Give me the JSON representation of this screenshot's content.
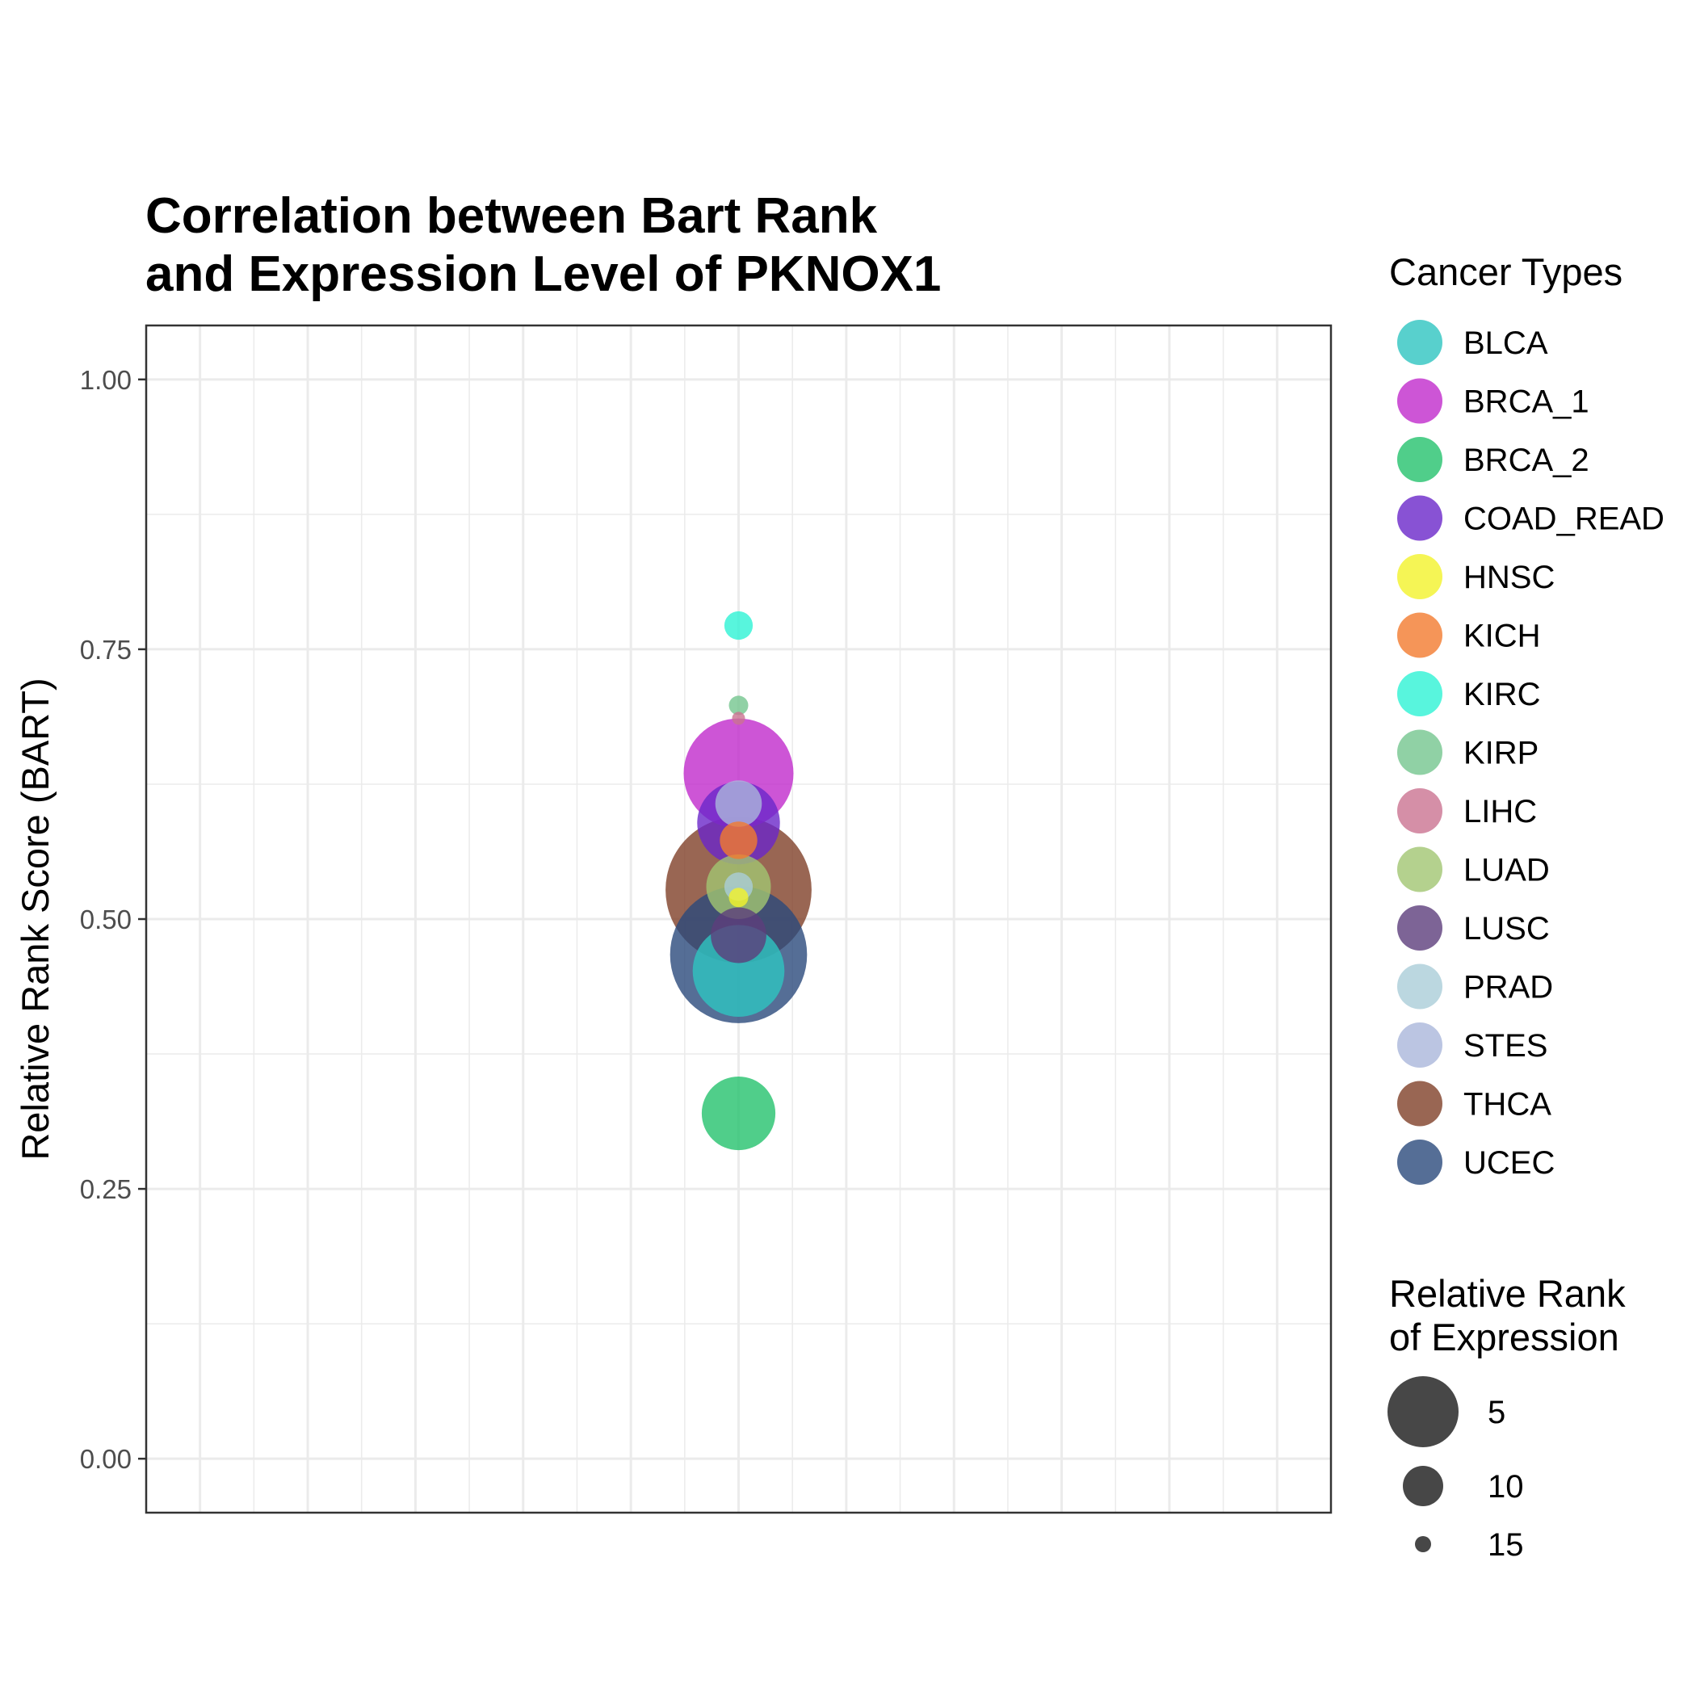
{
  "chart_data": {
    "type": "scatter",
    "title_lines": [
      "Correlation between Bart Rank",
      "and Expression Level of PKNOX1"
    ],
    "xlabel": "",
    "ylabel": "Relative Rank Score (BART)",
    "ylim": [
      -0.05,
      1.05
    ],
    "xlim": [
      -1.1,
      1.1
    ],
    "yticks": [
      {
        "value": 0.0,
        "label": "0.00"
      },
      {
        "value": 0.25,
        "label": "0.25"
      },
      {
        "value": 0.5,
        "label": "0.50"
      },
      {
        "value": 0.75,
        "label": "0.75"
      },
      {
        "value": 1.0,
        "label": "1.00"
      }
    ],
    "grid": true,
    "legend_color": {
      "title": "Cancer Types",
      "entries": [
        {
          "name": "BLCA",
          "color": "#2EC4C0"
        },
        {
          "name": "BRCA_1",
          "color": "#C12ACC"
        },
        {
          "name": "BRCA_2",
          "color": "#24C26D"
        },
        {
          "name": "COAD_READ",
          "color": "#6A27C9"
        },
        {
          "name": "HNSC",
          "color": "#F2F22A"
        },
        {
          "name": "KICH",
          "color": "#F27A2E"
        },
        {
          "name": "KIRC",
          "color": "#2EF2D4"
        },
        {
          "name": "KIRP",
          "color": "#74C68F"
        },
        {
          "name": "LIHC",
          "color": "#CA7391"
        },
        {
          "name": "LUAD",
          "color": "#A1C672"
        },
        {
          "name": "LUSC",
          "color": "#5C3D7C"
        },
        {
          "name": "PRAD",
          "color": "#AACDD8"
        },
        {
          "name": "STES",
          "color": "#AAB6DB"
        },
        {
          "name": "THCA",
          "color": "#7F4028"
        },
        {
          "name": "UCEC",
          "color": "#2B4A7C"
        }
      ]
    },
    "legend_size": {
      "title_lines": [
        "Relative Rank",
        "of Expression"
      ],
      "entries": [
        {
          "label": "5",
          "value": 5
        },
        {
          "label": "10",
          "value": 10
        },
        {
          "label": "15",
          "value": 15
        }
      ]
    },
    "points": [
      {
        "type": "THCA",
        "x": 0,
        "y": 0.527,
        "expr": 1
      },
      {
        "type": "UCEC",
        "x": 0,
        "y": 0.467,
        "expr": 2
      },
      {
        "type": "BRCA_1",
        "x": 0,
        "y": 0.635,
        "expr": 5
      },
      {
        "type": "BLCA",
        "x": 0,
        "y": 0.452,
        "expr": 7
      },
      {
        "type": "COAD_READ",
        "x": 0,
        "y": 0.589,
        "expr": 8
      },
      {
        "type": "BRCA_2",
        "x": 0,
        "y": 0.32,
        "expr": 9
      },
      {
        "type": "LUAD",
        "x": 0,
        "y": 0.53,
        "expr": 10
      },
      {
        "type": "LUSC",
        "x": 0,
        "y": 0.485,
        "expr": 11
      },
      {
        "type": "STES",
        "x": 0,
        "y": 0.607,
        "expr": 12
      },
      {
        "type": "KICH",
        "x": 0,
        "y": 0.573,
        "expr": 13
      },
      {
        "type": "PRAD",
        "x": 0,
        "y": 0.53,
        "expr": 14
      },
      {
        "type": "HNSC",
        "x": 0,
        "y": 0.52,
        "expr": 15
      },
      {
        "type": "KIRC",
        "x": 0,
        "y": 0.772,
        "expr": 14
      },
      {
        "type": "KIRP",
        "x": 0,
        "y": 0.698,
        "expr": 15
      },
      {
        "type": "LIHC",
        "x": 0,
        "y": 0.686,
        "expr": 17
      }
    ]
  }
}
